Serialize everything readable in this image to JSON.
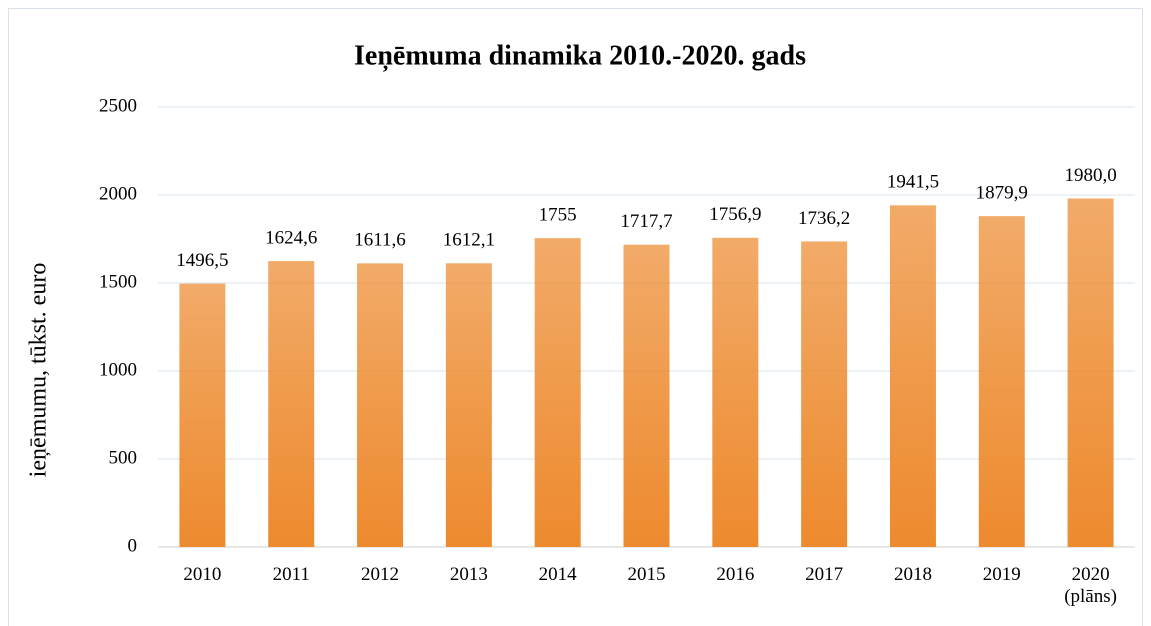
{
  "chart_data": {
    "type": "bar",
    "title": "Ieņēmuma dinamika 2010.-2020. gads",
    "y_label": "ieņēmumu, tūkst. euro",
    "categories": [
      "2010",
      "2011",
      "2012",
      "2013",
      "2014",
      "2015",
      "2016",
      "2017",
      "2018",
      "2019",
      "2020\n(plāns)"
    ],
    "values": [
      1496.5,
      1624.6,
      1611.6,
      1612.1,
      1755,
      1717.7,
      1756.9,
      1736.2,
      1941.5,
      1879.9,
      1980
    ],
    "value_labels": [
      "1496,5",
      "1624,6",
      "1611,6",
      "1612,1",
      "1755",
      "1717,7",
      "1756,9",
      "1736,2",
      "1941,5",
      "1879,9",
      "1980,0"
    ],
    "color": "#ed8a2e",
    "ylim": [
      0,
      2500
    ],
    "yticks": [
      0,
      500,
      1000,
      1500,
      2000,
      2500
    ],
    "grid": true
  }
}
